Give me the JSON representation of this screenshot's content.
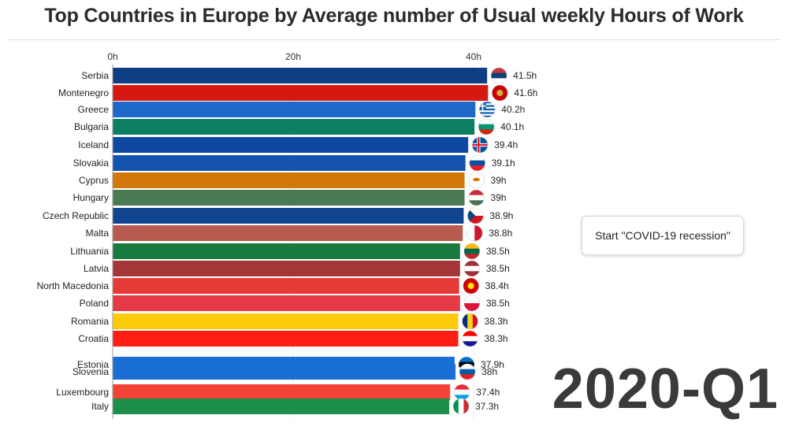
{
  "title": "Top Countries in Europe by Average number of Usual weekly Hours of Work",
  "annotation_button": "Start \"COVID-19 recession\"",
  "period": "2020-Q1",
  "colors": {
    "axis": "#9e9e9e",
    "grid": "#ececec"
  },
  "chart_data": {
    "type": "bar",
    "orientation": "horizontal",
    "title": "Top Countries in Europe by Average number of Usual weekly Hours of Work",
    "xlim": [
      0,
      45
    ],
    "x_ticks": [
      0,
      20,
      40
    ],
    "x_tick_labels": [
      "0h",
      "20h",
      "40h"
    ],
    "grid": true,
    "categories": [
      "Serbia",
      "Montenegro",
      "Greece",
      "Bulgaria",
      "Iceland",
      "Slovakia",
      "Cyprus",
      "Hungary",
      "Czech Republic",
      "Malta",
      "Lithuania",
      "Latvia",
      "North Macedonia",
      "Poland",
      "Romania",
      "Croatia",
      "Estonia",
      "Slovenia",
      "Luxembourg",
      "Italy"
    ],
    "values": [
      41.5,
      41.6,
      40.2,
      40.1,
      39.4,
      39.1,
      39,
      39,
      38.9,
      38.8,
      38.5,
      38.5,
      38.4,
      38.5,
      38.3,
      38.3,
      37.9,
      38,
      37.4,
      37.3
    ],
    "value_labels": [
      "41.5h",
      "41.6h",
      "40.2h",
      "40.1h",
      "39.4h",
      "39.1h",
      "39h",
      "39h",
      "38.9h",
      "38.8h",
      "38.5h",
      "38.5h",
      "38.4h",
      "38.5h",
      "38.3h",
      "38.3h",
      "37.9h",
      "38h",
      "37.4h",
      "37.3h"
    ],
    "bar_colors": [
      "#0e3f85",
      "#d41a10",
      "#1f67c8",
      "#0c7f62",
      "#0d47a1",
      "#1454b0",
      "#d2770a",
      "#4a7a52",
      "#11448e",
      "#b85a4d",
      "#197a40",
      "#a33737",
      "#e53935",
      "#e53945",
      "#fdca0a",
      "#ff1e14",
      "#1a6fd4",
      "#1a6fd4",
      "#f44336",
      "#1e8f4a"
    ],
    "flags": [
      {
        "type": "h",
        "colors": [
          "#c6363c",
          "#0c4076",
          "#ffffff"
        ]
      },
      {
        "type": "circle",
        "colors": [
          "#c40308",
          "#d4af37"
        ]
      },
      {
        "type": "stripes9",
        "colors": [
          "#0d5eaf",
          "#ffffff"
        ]
      },
      {
        "type": "h",
        "colors": [
          "#ffffff",
          "#00966e",
          "#d62612"
        ]
      },
      {
        "type": "nordic",
        "colors": [
          "#02529c",
          "#ffffff",
          "#dc1e35"
        ]
      },
      {
        "type": "h",
        "colors": [
          "#ffffff",
          "#0b4ea2",
          "#ee1c25"
        ]
      },
      {
        "type": "plain",
        "colors": [
          "#ffffff",
          "#d47600"
        ]
      },
      {
        "type": "h",
        "colors": [
          "#ce2939",
          "#ffffff",
          "#477050"
        ]
      },
      {
        "type": "triangle",
        "colors": [
          "#ffffff",
          "#d7141a",
          "#11457e"
        ]
      },
      {
        "type": "v",
        "colors": [
          "#ffffff",
          "#cf142b"
        ]
      },
      {
        "type": "h",
        "colors": [
          "#fdb913",
          "#006a44",
          "#c1272d"
        ]
      },
      {
        "type": "h",
        "colors": [
          "#9e3039",
          "#ffffff",
          "#9e3039"
        ]
      },
      {
        "type": "circle",
        "colors": [
          "#d20000",
          "#ffe600"
        ]
      },
      {
        "type": "h2",
        "colors": [
          "#ffffff",
          "#dc143c"
        ]
      },
      {
        "type": "v3",
        "colors": [
          "#002b7f",
          "#fcd116",
          "#ce1126"
        ]
      },
      {
        "type": "h",
        "colors": [
          "#ff0000",
          "#ffffff",
          "#171796"
        ]
      },
      {
        "type": "h",
        "colors": [
          "#0072ce",
          "#000000",
          "#ffffff"
        ]
      },
      {
        "type": "h",
        "colors": [
          "#ffffff",
          "#005da4",
          "#ed1c24"
        ]
      },
      {
        "type": "h",
        "colors": [
          "#ed2939",
          "#ffffff",
          "#00a1de"
        ]
      },
      {
        "type": "v3",
        "colors": [
          "#009246",
          "#ffffff",
          "#ce2b37"
        ]
      }
    ]
  }
}
